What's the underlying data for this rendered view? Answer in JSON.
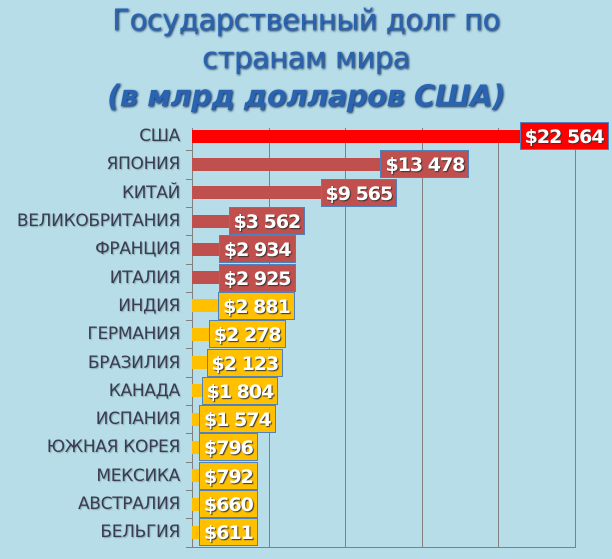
{
  "chart_data": {
    "type": "bar",
    "orientation": "horizontal",
    "title": [
      "Государственный долг по",
      "странам мира",
      "(в млрд долларов США)"
    ],
    "categories": [
      "США",
      "ЯПОНИЯ",
      "КИТАЙ",
      "ВЕЛИКОБРИТАНИЯ",
      "ФРАНЦИЯ",
      "ИТАЛИЯ",
      "ИНДИЯ",
      "ГЕРМАНИЯ",
      "БРАЗИЛИЯ",
      "КАНАДА",
      "ИСПАНИЯ",
      "ЮЖНАЯ КОРЕЯ",
      "МЕКСИКА",
      "АВСТРАЛИЯ",
      "БЕЛЬГИЯ"
    ],
    "values": [
      22564,
      13478,
      9565,
      3562,
      2934,
      2925,
      2881,
      2278,
      2123,
      1804,
      1574,
      796,
      792,
      660,
      611
    ],
    "data_labels": [
      "$22 564",
      "$13 478",
      "$9 565",
      "$3 562",
      "$2 934",
      "$2 925",
      "$2 881",
      "$2 278",
      "$2 123",
      "$1 804",
      "$1 574",
      "$796",
      "$792",
      "$660",
      "$611"
    ],
    "bar_colors": [
      "#ff0000",
      "#c0504d",
      "#c0504d",
      "#c0504d",
      "#c0504d",
      "#c0504d",
      "#ffc000",
      "#ffc000",
      "#ffc000",
      "#ffc000",
      "#ffc000",
      "#ffc000",
      "#ffc000",
      "#ffc000",
      "#ffc000"
    ],
    "xlim": [
      0,
      25000
    ],
    "grid_step": 5000,
    "grid": true,
    "xlabel": "",
    "ylabel": ""
  }
}
